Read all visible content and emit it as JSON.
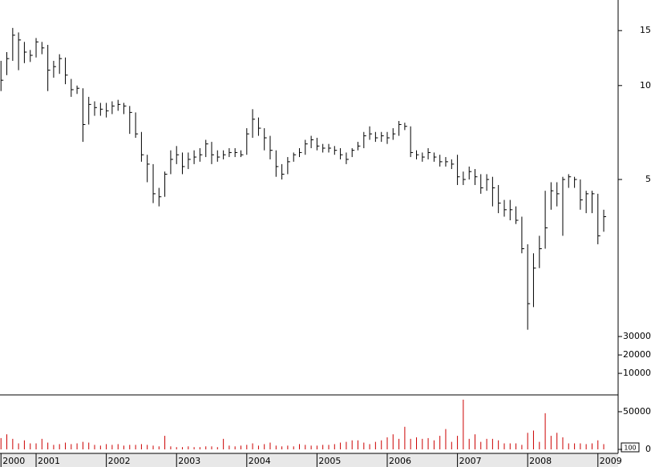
{
  "chart_data": [
    {
      "type": "ohlc",
      "log_scale": true,
      "color": "#000000",
      "xlim": [
        2000.486,
        2009.288
      ],
      "xticks": [
        {
          "value": 2000.5,
          "label": "2000"
        },
        2001,
        2002,
        2003,
        2004,
        2005,
        2006,
        2007,
        2008,
        2009
      ],
      "ylim": [
        1.02,
        18.8
      ],
      "yticks": [
        5,
        10,
        15
      ],
      "y2lim": [
        -1700,
        212700
      ],
      "y2ticks": [
        10000,
        20000,
        30000
      ],
      "x": [
        2000.5,
        2000.583,
        2000.667,
        2000.75,
        2000.833,
        2000.917,
        2001,
        2001.083,
        2001.167,
        2001.25,
        2001.333,
        2001.417,
        2001.5,
        2001.583,
        2001.667,
        2001.75,
        2001.833,
        2001.917,
        2002,
        2002.083,
        2002.167,
        2002.25,
        2002.333,
        2002.417,
        2002.5,
        2002.583,
        2002.667,
        2002.75,
        2002.833,
        2002.917,
        2003,
        2003.083,
        2003.167,
        2003.25,
        2003.333,
        2003.417,
        2003.5,
        2003.583,
        2003.667,
        2003.75,
        2003.833,
        2003.917,
        2004,
        2004.083,
        2004.167,
        2004.25,
        2004.333,
        2004.417,
        2004.5,
        2004.583,
        2004.667,
        2004.75,
        2004.833,
        2004.917,
        2005,
        2005.083,
        2005.167,
        2005.25,
        2005.333,
        2005.417,
        2005.5,
        2005.583,
        2005.667,
        2005.75,
        2005.833,
        2005.917,
        2006,
        2006.083,
        2006.167,
        2006.25,
        2006.333,
        2006.417,
        2006.5,
        2006.583,
        2006.667,
        2006.75,
        2006.833,
        2006.917,
        2007,
        2007.083,
        2007.167,
        2007.25,
        2007.333,
        2007.417,
        2007.5,
        2007.583,
        2007.667,
        2007.75,
        2007.833,
        2007.917,
        2008,
        2008.083,
        2008.167,
        2008.25,
        2008.333,
        2008.417,
        2008.5,
        2008.583,
        2008.667,
        2008.75,
        2008.833,
        2008.917,
        2009,
        2009.083
      ],
      "high": [
        12.0,
        12.8,
        15.3,
        14.8,
        13.8,
        13.0,
        14.2,
        13.8,
        13.5,
        12.0,
        12.6,
        12.3,
        10.5,
        10.0,
        9.8,
        9.2,
        8.9,
        8.8,
        8.8,
        8.9,
        9.0,
        8.8,
        8.6,
        8.2,
        7.1,
        6.0,
        5.6,
        4.7,
        5.3,
        6.2,
        6.4,
        6.1,
        6.1,
        6.2,
        6.3,
        6.7,
        6.6,
        6.2,
        6.2,
        6.3,
        6.3,
        6.2,
        7.3,
        8.4,
        7.9,
        7.3,
        6.9,
        6.2,
        5.6,
        5.9,
        6.1,
        6.3,
        6.7,
        6.9,
        6.8,
        6.5,
        6.5,
        6.4,
        6.3,
        6.1,
        6.3,
        6.6,
        7.1,
        7.4,
        7.1,
        7.1,
        7.1,
        7.3,
        7.7,
        7.6,
        7.4,
        6.2,
        6.1,
        6.3,
        6.1,
        6.0,
        5.9,
        5.8,
        6.0,
        5.3,
        5.5,
        5.4,
        5.2,
        5.2,
        5.1,
        4.8,
        4.3,
        4.3,
        4.1,
        3.8,
        3.1,
        2.9,
        3.3,
        4.6,
        4.9,
        4.9,
        5.1,
        5.2,
        5.1,
        5.0,
        4.6,
        4.6,
        4.5,
        4.0
      ],
      "low": [
        9.6,
        10.8,
        12.0,
        11.2,
        11.8,
        11.9,
        12.3,
        12.6,
        9.6,
        10.6,
        10.9,
        10.1,
        9.2,
        9.4,
        6.6,
        7.5,
        8.0,
        8.0,
        7.9,
        8.1,
        8.3,
        8.1,
        7.0,
        6.8,
        5.7,
        4.9,
        4.2,
        4.1,
        4.4,
        5.2,
        5.6,
        5.2,
        5.4,
        5.6,
        5.7,
        5.9,
        5.6,
        5.7,
        5.8,
        5.9,
        5.9,
        5.9,
        6.0,
        6.8,
        6.9,
        6.2,
        5.8,
        5.1,
        5.0,
        5.2,
        5.7,
        5.9,
        6.0,
        6.3,
        6.2,
        6.1,
        6.1,
        6.0,
        5.8,
        5.6,
        5.9,
        6.2,
        6.3,
        6.7,
        6.6,
        6.6,
        6.5,
        6.7,
        6.9,
        7.2,
        5.9,
        5.8,
        5.7,
        5.8,
        5.7,
        5.5,
        5.5,
        5.4,
        4.8,
        4.8,
        5.0,
        4.8,
        4.5,
        4.6,
        4.1,
        3.9,
        3.8,
        3.7,
        3.6,
        2.9,
        1.65,
        1.95,
        2.6,
        3.0,
        4.0,
        4.1,
        3.3,
        4.7,
        4.7,
        4.0,
        3.9,
        3.9,
        3.1,
        3.4
      ],
      "close": [
        10.4,
        12.2,
        14.5,
        14.0,
        12.8,
        12.5,
        13.8,
        13.2,
        11.2,
        11.5,
        12.2,
        10.8,
        9.7,
        9.8,
        7.5,
        8.7,
        8.5,
        8.4,
        8.3,
        8.6,
        8.7,
        8.6,
        8.2,
        7.0,
        6.0,
        5.6,
        4.5,
        4.4,
        5.2,
        5.8,
        6.0,
        5.5,
        5.8,
        5.9,
        6.0,
        6.5,
        6.0,
        5.9,
        6.0,
        6.1,
        6.1,
        6.0,
        7.0,
        7.8,
        7.3,
        6.8,
        6.2,
        5.5,
        5.2,
        5.7,
        6.0,
        6.1,
        6.5,
        6.7,
        6.4,
        6.3,
        6.3,
        6.2,
        6.0,
        5.8,
        6.2,
        6.4,
        6.9,
        7.0,
        6.8,
        6.9,
        6.8,
        7.0,
        7.5,
        7.4,
        6.1,
        6.0,
        5.9,
        6.1,
        5.9,
        5.7,
        5.7,
        5.6,
        5.1,
        5.0,
        5.3,
        5.1,
        4.7,
        5.0,
        4.7,
        4.2,
        4.0,
        4.0,
        3.7,
        3.0,
        2.0,
        2.6,
        3.0,
        3.5,
        4.6,
        4.5,
        5.0,
        5.1,
        5.0,
        4.3,
        4.5,
        4.5,
        3.3,
        3.8
      ]
    },
    {
      "type": "bar",
      "color": "#cc0000",
      "annotation": "100",
      "xlim": [
        2000.486,
        2009.288
      ],
      "ylim": [
        -5300,
        72300
      ],
      "yticks": [
        0,
        50000
      ],
      "values": [
        15000,
        20000,
        14000,
        8000,
        12000,
        8000,
        8000,
        14000,
        9000,
        6000,
        7000,
        9000,
        7000,
        8000,
        10000,
        9000,
        6000,
        5000,
        7000,
        6000,
        7000,
        5000,
        6000,
        6000,
        7000,
        6000,
        5000,
        4000,
        18000,
        4000,
        3000,
        3000,
        4000,
        3000,
        3000,
        4000,
        4000,
        3000,
        14000,
        5000,
        4000,
        5000,
        6000,
        8000,
        5000,
        7000,
        9000,
        5000,
        4000,
        5000,
        4000,
        7000,
        6000,
        5000,
        5000,
        6000,
        6000,
        7000,
        9000,
        10000,
        12000,
        12000,
        9000,
        7000,
        10000,
        12000,
        16000,
        20000,
        14000,
        30000,
        14000,
        16000,
        14000,
        15000,
        12000,
        18000,
        27000,
        10000,
        18000,
        66000,
        14000,
        20000,
        10000,
        14000,
        14000,
        12000,
        8000,
        8000,
        8000,
        6000,
        22000,
        25000,
        10000,
        48000,
        18000,
        22000,
        16000,
        8000,
        8000,
        8000,
        7000,
        8000,
        12000,
        7000
      ]
    }
  ]
}
